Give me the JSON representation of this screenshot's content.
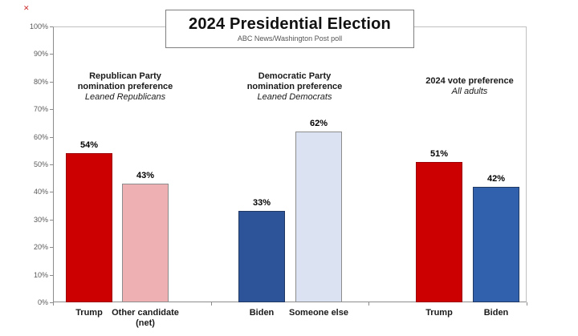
{
  "figure": {
    "background": "#ffffff",
    "broken_image_marker": "✕"
  },
  "chart_data": {
    "type": "bar",
    "title": "2024 Presidential Election",
    "subtitle": "ABC News/Washington Post poll",
    "ylabel": "",
    "xlabel": "",
    "ylim": [
      0,
      100
    ],
    "grid": false,
    "legend": "none",
    "ytick_labels": [
      "0%",
      "10%",
      "20%",
      "30%",
      "40%",
      "50%",
      "60%",
      "70%",
      "80%",
      "90%",
      "100%"
    ],
    "groups": [
      {
        "header_lines": [
          "Republican Party",
          "nomination preference"
        ],
        "header_italic": "Leaned Republicans",
        "bars": [
          {
            "category": "Trump",
            "value": 54,
            "value_label": "54%",
            "fill": "#cc0000",
            "border": "#9c0006"
          },
          {
            "category": "Other candidate (net)",
            "value": 43,
            "value_label": "43%",
            "fill": "#efb0b4",
            "border": "#8c8c8c"
          }
        ]
      },
      {
        "header_lines": [
          "Democratic Party",
          "nomination preference"
        ],
        "header_italic": "Leaned Democrats",
        "bars": [
          {
            "category": "Biden",
            "value": 33,
            "value_label": "33%",
            "fill": "#2d5499",
            "border": "#1f3864"
          },
          {
            "category": "Someone else",
            "value": 62,
            "value_label": "62%",
            "fill": "#dbe2f1",
            "border": "#8c8c8c"
          }
        ]
      },
      {
        "header_lines": [
          "2024 vote preference"
        ],
        "header_italic": "All adults",
        "bars": [
          {
            "category": "Trump",
            "value": 51,
            "value_label": "51%",
            "fill": "#cc0000",
            "border": "#9c0006"
          },
          {
            "category": "Biden",
            "value": 42,
            "value_label": "42%",
            "fill": "#3161ac",
            "border": "#1f3864"
          }
        ]
      }
    ]
  }
}
